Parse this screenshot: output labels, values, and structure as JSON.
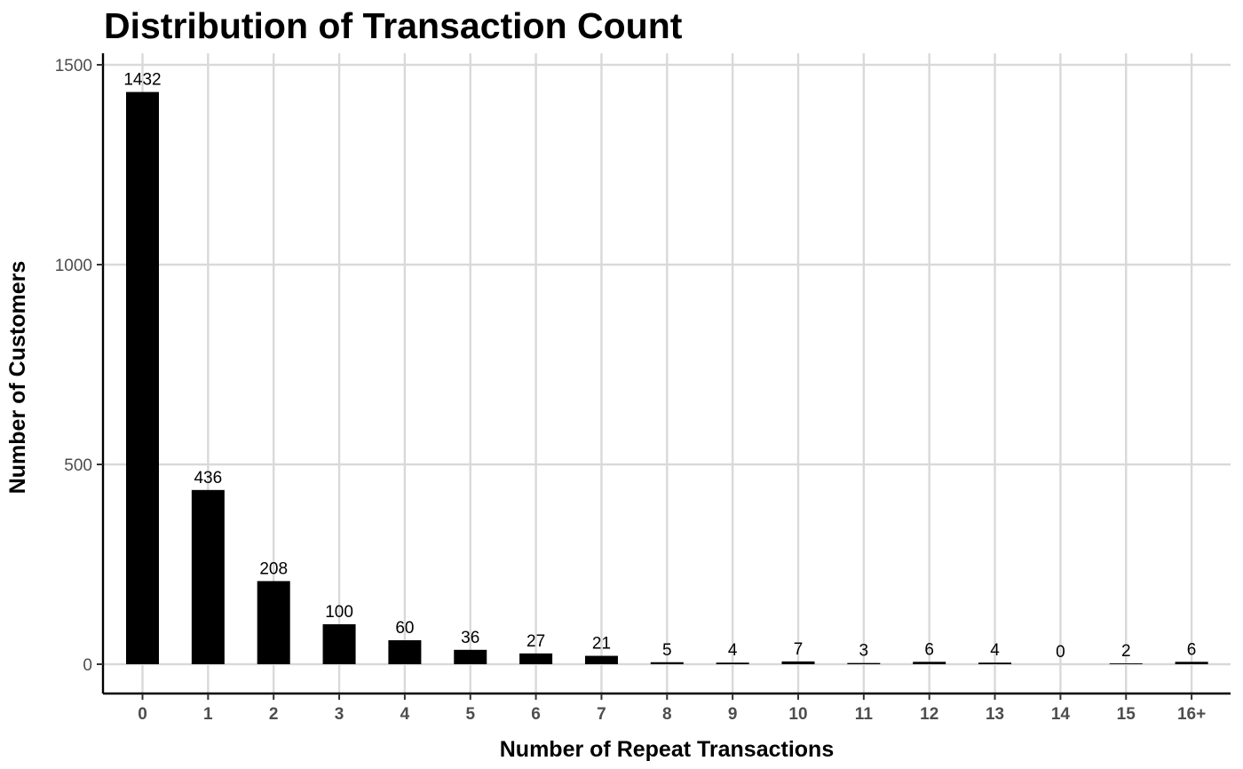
{
  "chart_data": {
    "type": "bar",
    "title": "Distribution of Transaction Count",
    "xlabel": "Number of Repeat Transactions",
    "ylabel": "Number of Customers",
    "categories": [
      "0",
      "1",
      "2",
      "3",
      "4",
      "5",
      "6",
      "7",
      "8",
      "9",
      "10",
      "11",
      "12",
      "13",
      "14",
      "15",
      "16+"
    ],
    "values": [
      1432,
      436,
      208,
      100,
      60,
      36,
      27,
      21,
      5,
      4,
      7,
      3,
      6,
      4,
      0,
      2,
      6
    ],
    "data_labels": [
      "1432",
      "436",
      "208",
      "100",
      "60",
      "36",
      "27",
      "21",
      "5",
      "4",
      "7",
      "3",
      "6",
      "4",
      "0",
      "2",
      "6"
    ],
    "yticks": [
      0,
      500,
      1000,
      1500
    ],
    "ytick_labels": [
      "0",
      "500",
      "1000",
      "1500"
    ],
    "ylim": [
      -72,
      1500
    ],
    "grid": true,
    "bar_color": "#000000",
    "grid_color": "#d9d9d9"
  }
}
